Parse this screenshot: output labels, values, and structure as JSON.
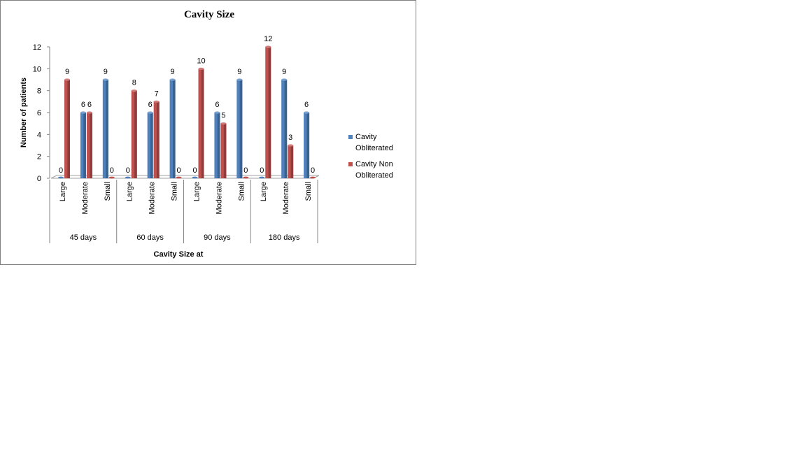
{
  "chart_data": {
    "type": "bar",
    "title": "Cavity Size",
    "xlabel": "Cavity Size at",
    "ylabel": "Number of patients",
    "ylim": [
      0,
      12
    ],
    "yticks": [
      0,
      2,
      4,
      6,
      8,
      10,
      12
    ],
    "grid": false,
    "legend_position": "right",
    "groups": [
      {
        "label": "45 days",
        "categories": [
          "Large",
          "Moderate",
          "Small"
        ]
      },
      {
        "label": "60 days",
        "categories": [
          "Large",
          "Moderate",
          "Small"
        ]
      },
      {
        "label": "90 days",
        "categories": [
          "Large",
          "Moderate",
          "Small"
        ]
      },
      {
        "label": "180 days",
        "categories": [
          "Large",
          "Moderate",
          "Small"
        ]
      }
    ],
    "series": [
      {
        "name": "Cavity Obliterated",
        "legend_lines": [
          "Cavity",
          "Obliterated"
        ],
        "color": "#4F81BD",
        "values": [
          0,
          6,
          9,
          0,
          6,
          9,
          0,
          6,
          9,
          0,
          9,
          6
        ]
      },
      {
        "name": "Cavity Non Obliterated",
        "legend_lines": [
          "Cavity Non",
          "Obliterated"
        ],
        "color": "#C0504D",
        "values": [
          9,
          6,
          0,
          8,
          7,
          0,
          10,
          5,
          0,
          12,
          3,
          0
        ]
      }
    ]
  }
}
